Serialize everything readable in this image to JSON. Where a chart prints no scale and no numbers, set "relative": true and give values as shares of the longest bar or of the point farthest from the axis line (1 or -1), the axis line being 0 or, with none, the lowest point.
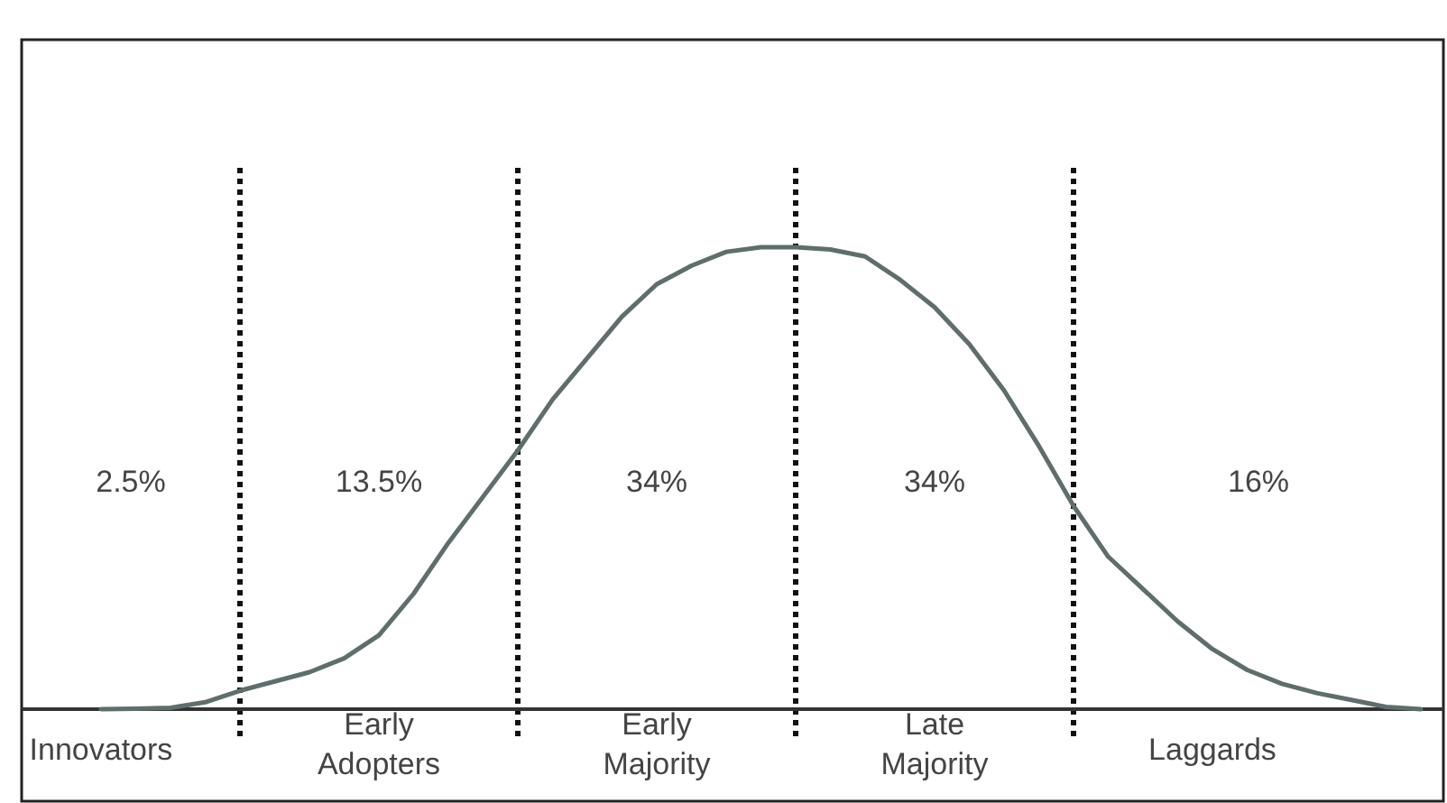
{
  "chart_data": {
    "type": "line",
    "relative": true,
    "categories": [
      null,
      null,
      "Innovators",
      null,
      null,
      null,
      null,
      null,
      null,
      null,
      "Early\nAdopters",
      null,
      null,
      null,
      null,
      null,
      null,
      null,
      "Early\nMajority",
      null,
      null,
      null,
      null,
      null,
      null,
      null,
      "Late\nMajority",
      null,
      null,
      null,
      null,
      null,
      null,
      null,
      "Laggards",
      null,
      null,
      null,
      null,
      null,
      null
    ],
    "series": [
      {
        "color": "#5f6e6c",
        "values": [
          null,
          null,
          0,
          0.001,
          0.003,
          0.015,
          0.04,
          0.06,
          0.08,
          0.11,
          0.16,
          0.25,
          0.36,
          0.46,
          0.56,
          0.67,
          0.76,
          0.85,
          0.92,
          0.96,
          0.99,
          1.0,
          1.0,
          0.995,
          0.98,
          0.93,
          0.87,
          0.79,
          0.69,
          0.57,
          0.44,
          0.33,
          0.26,
          0.19,
          0.13,
          0.085,
          0.055,
          0.035,
          0.02,
          0.005,
          0
        ]
      }
    ],
    "grid": "x",
    "annotations": [
      "2.5%",
      "13.5%",
      "34%",
      "34%",
      "16%"
    ],
    "line_style": "solid",
    "marker": "none"
  }
}
